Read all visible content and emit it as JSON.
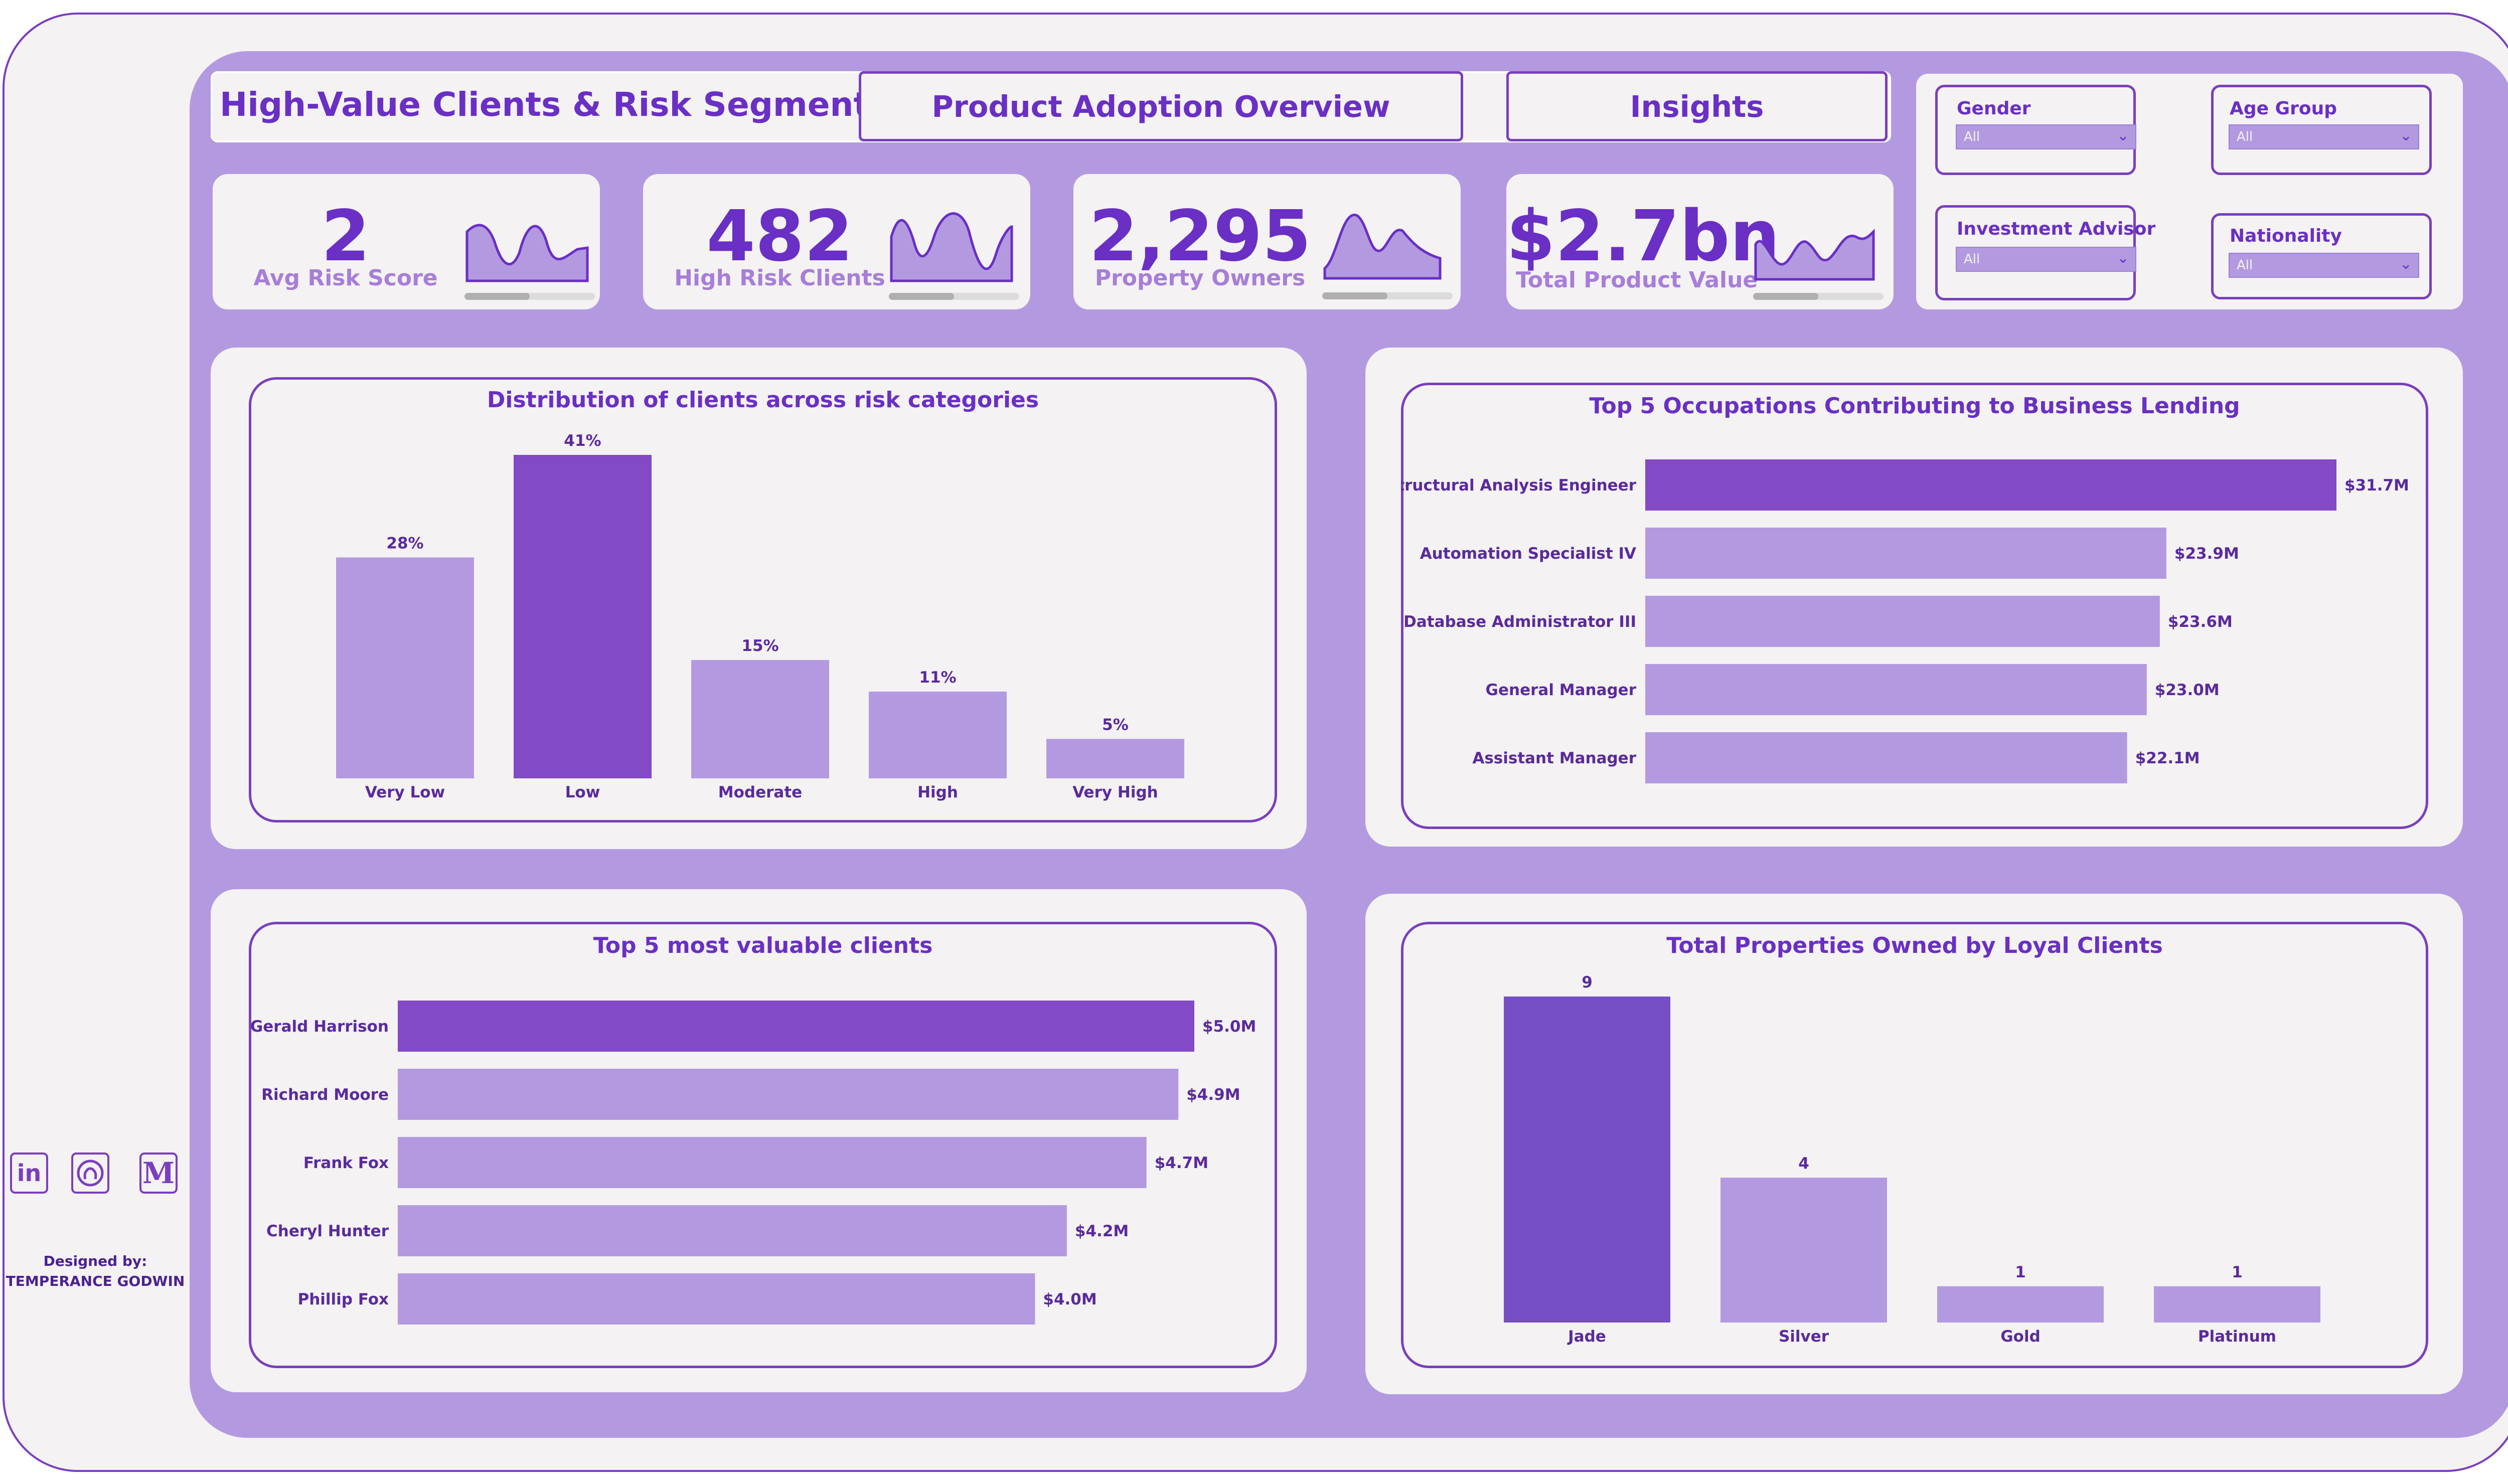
{
  "header": {
    "title": "High-Value Clients & Risk Segment",
    "nav": [
      "Product Adoption Overview",
      "Insights"
    ]
  },
  "kpis": [
    {
      "value": "2",
      "label": "Avg Risk Score",
      "sparkline_icon": "area-sparkline"
    },
    {
      "value": "482",
      "label": "High Risk Clients",
      "sparkline_icon": "area-sparkline"
    },
    {
      "value": "2,295",
      "label": "Property Owners",
      "sparkline_icon": "area-sparkline"
    },
    {
      "value": "$2.7bn",
      "label": "Total Product Value",
      "sparkline_icon": "area-sparkline"
    }
  ],
  "slicers": [
    {
      "label": "Gender",
      "value": "All"
    },
    {
      "label": "Age Group",
      "value": "All"
    },
    {
      "label": "Investment Advisor",
      "value": "All"
    },
    {
      "label": "Nationality",
      "value": "All"
    }
  ],
  "colors": {
    "accent": "#7a3fbd",
    "highlight_bar": "#824ac5",
    "bar": "#b39ae0",
    "background": "#f4f2f2",
    "title_text": "#6a2fc4"
  },
  "chart_data": [
    {
      "type": "bar",
      "title": "Distribution of clients across risk categories",
      "categories": [
        "Very Low",
        "Low",
        "Moderate",
        "High",
        "Very High"
      ],
      "values": [
        28,
        41,
        15,
        11,
        5
      ],
      "value_labels": [
        "28%",
        "41%",
        "15%",
        "11%",
        "5%"
      ],
      "highlight": "Low",
      "grid": false
    },
    {
      "type": "bar",
      "orientation": "horizontal",
      "title": "Top 5 Occupations Contributing to Business Lending",
      "categories": [
        "Structural Analysis Engineer",
        "Automation Specialist IV",
        "Database Administrator III",
        "General Manager",
        "Assistant Manager"
      ],
      "values": [
        31.7,
        23.9,
        23.6,
        23.0,
        22.1
      ],
      "value_labels": [
        "$31.7M",
        "$23.9M",
        "$23.6M",
        "$23.0M",
        "$22.1M"
      ],
      "highlight": "Structural Analysis Engineer",
      "grid": false
    },
    {
      "type": "bar",
      "orientation": "horizontal",
      "title": "Top 5 most valuable clients",
      "categories": [
        "Gerald Harrison",
        "Richard Moore",
        "Frank Fox",
        "Cheryl Hunter",
        "Phillip Fox"
      ],
      "values": [
        5.0,
        4.9,
        4.7,
        4.2,
        4.0
      ],
      "value_labels": [
        "$5.0M",
        "$4.9M",
        "$4.7M",
        "$4.2M",
        "$4.0M"
      ],
      "highlight": "Gerald Harrison",
      "grid": false
    },
    {
      "type": "bar",
      "title": "Total Properties Owned by Loyal Clients",
      "categories": [
        "Jade",
        "Silver",
        "Gold",
        "Platinum"
      ],
      "values": [
        9,
        4,
        1,
        1
      ],
      "value_labels": [
        "9",
        "4",
        "1",
        "1"
      ],
      "highlight": "Jade",
      "grid": false
    }
  ],
  "social_icons": [
    "linkedin-icon",
    "github-icon",
    "medium-icon"
  ],
  "designer": {
    "line1": "Designed by:",
    "line2": "TEMPERANCE GODWIN"
  }
}
